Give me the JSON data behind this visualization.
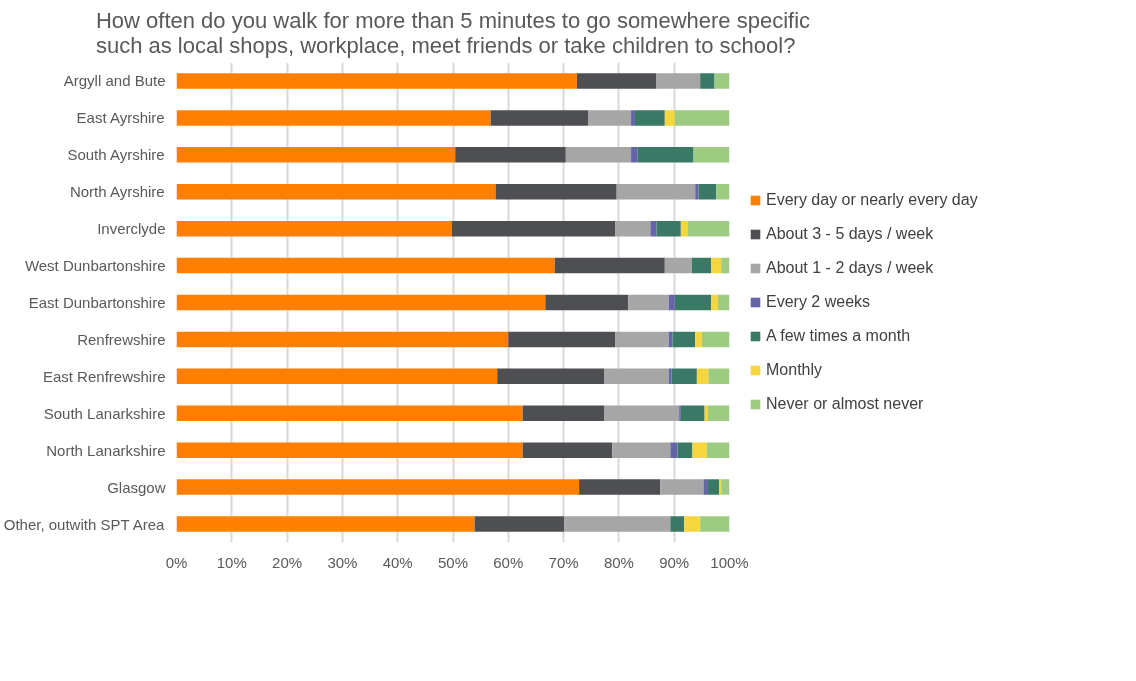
{
  "chart_data": {
    "type": "bar",
    "orientation": "horizontal",
    "stacked": true,
    "title": "How often do you walk for more than 5 minutes to go somewhere specific\nsuch as local shops, workplace, meet friends or take children to school?",
    "categories": [
      "Argyll and Bute",
      "East Ayrshire",
      "South Ayrshire",
      "North Ayrshire",
      "Inverclyde",
      "West Dunbartonshire",
      "East Dunbartonshire",
      "Renfrewshire",
      "East Renfrewshire",
      "South Lanarkshire",
      "North Lanarkshire",
      "Glasgow",
      "Other, outwith SPT Area"
    ],
    "series": [
      {
        "name": "Every day or nearly every day",
        "color": "#ff7f00",
        "values": [
          72.4,
          56.8,
          50.4,
          57.7,
          49.8,
          68.4,
          66.7,
          60.0,
          58.0,
          62.6,
          62.6,
          72.8,
          53.9
        ]
      },
      {
        "name": "About 3 - 5 days / week",
        "color": "#4e4f52",
        "values": [
          14.4,
          17.7,
          20.0,
          21.9,
          29.5,
          19.9,
          15.0,
          19.3,
          19.4,
          14.8,
          16.2,
          14.7,
          16.2
        ]
      },
      {
        "name": "About 1 - 2 days / week",
        "color": "#a6a6a6",
        "values": [
          7.9,
          7.7,
          11.8,
          14.2,
          6.4,
          4.9,
          7.3,
          9.7,
          11.6,
          13.5,
          10.5,
          7.8,
          19.2
        ]
      },
      {
        "name": "Every 2 weeks",
        "color": "#6365a8",
        "values": [
          0,
          0.7,
          1.2,
          0.6,
          1.1,
          0,
          1.1,
          0.7,
          0.5,
          0.3,
          1.3,
          0.8,
          0
        ]
      },
      {
        "name": "A few times a month",
        "color": "#3a7966",
        "values": [
          2.6,
          5.4,
          10.1,
          3.2,
          4.4,
          3.5,
          6.6,
          4.1,
          4.6,
          4.3,
          2.7,
          2.0,
          2.5
        ]
      },
      {
        "name": "Monthly",
        "color": "#f5d63d",
        "values": [
          0,
          1.8,
          0,
          0,
          1.2,
          1.8,
          1.2,
          1.2,
          2.1,
          0.6,
          2.6,
          0.4,
          2.9
        ]
      },
      {
        "name": "Never or almost never",
        "color": "#9dcb82",
        "values": [
          2.7,
          9.9,
          6.5,
          2.4,
          7.6,
          1.5,
          2.1,
          5.0,
          3.8,
          3.9,
          4.1,
          1.5,
          5.3
        ]
      }
    ],
    "xlim": [
      0,
      100
    ],
    "xticks": [
      {
        "value": 0,
        "label": "0%"
      },
      {
        "value": 10,
        "label": "10%"
      },
      {
        "value": 20,
        "label": "20%"
      },
      {
        "value": 30,
        "label": "30%"
      },
      {
        "value": 40,
        "label": "40%"
      },
      {
        "value": 50,
        "label": "50%"
      },
      {
        "value": 60,
        "label": "60%"
      },
      {
        "value": 70,
        "label": "70%"
      },
      {
        "value": 80,
        "label": "80%"
      },
      {
        "value": 90,
        "label": "90%"
      },
      {
        "value": 100,
        "label": "100%"
      }
    ],
    "grid": "x",
    "legend": "right"
  }
}
